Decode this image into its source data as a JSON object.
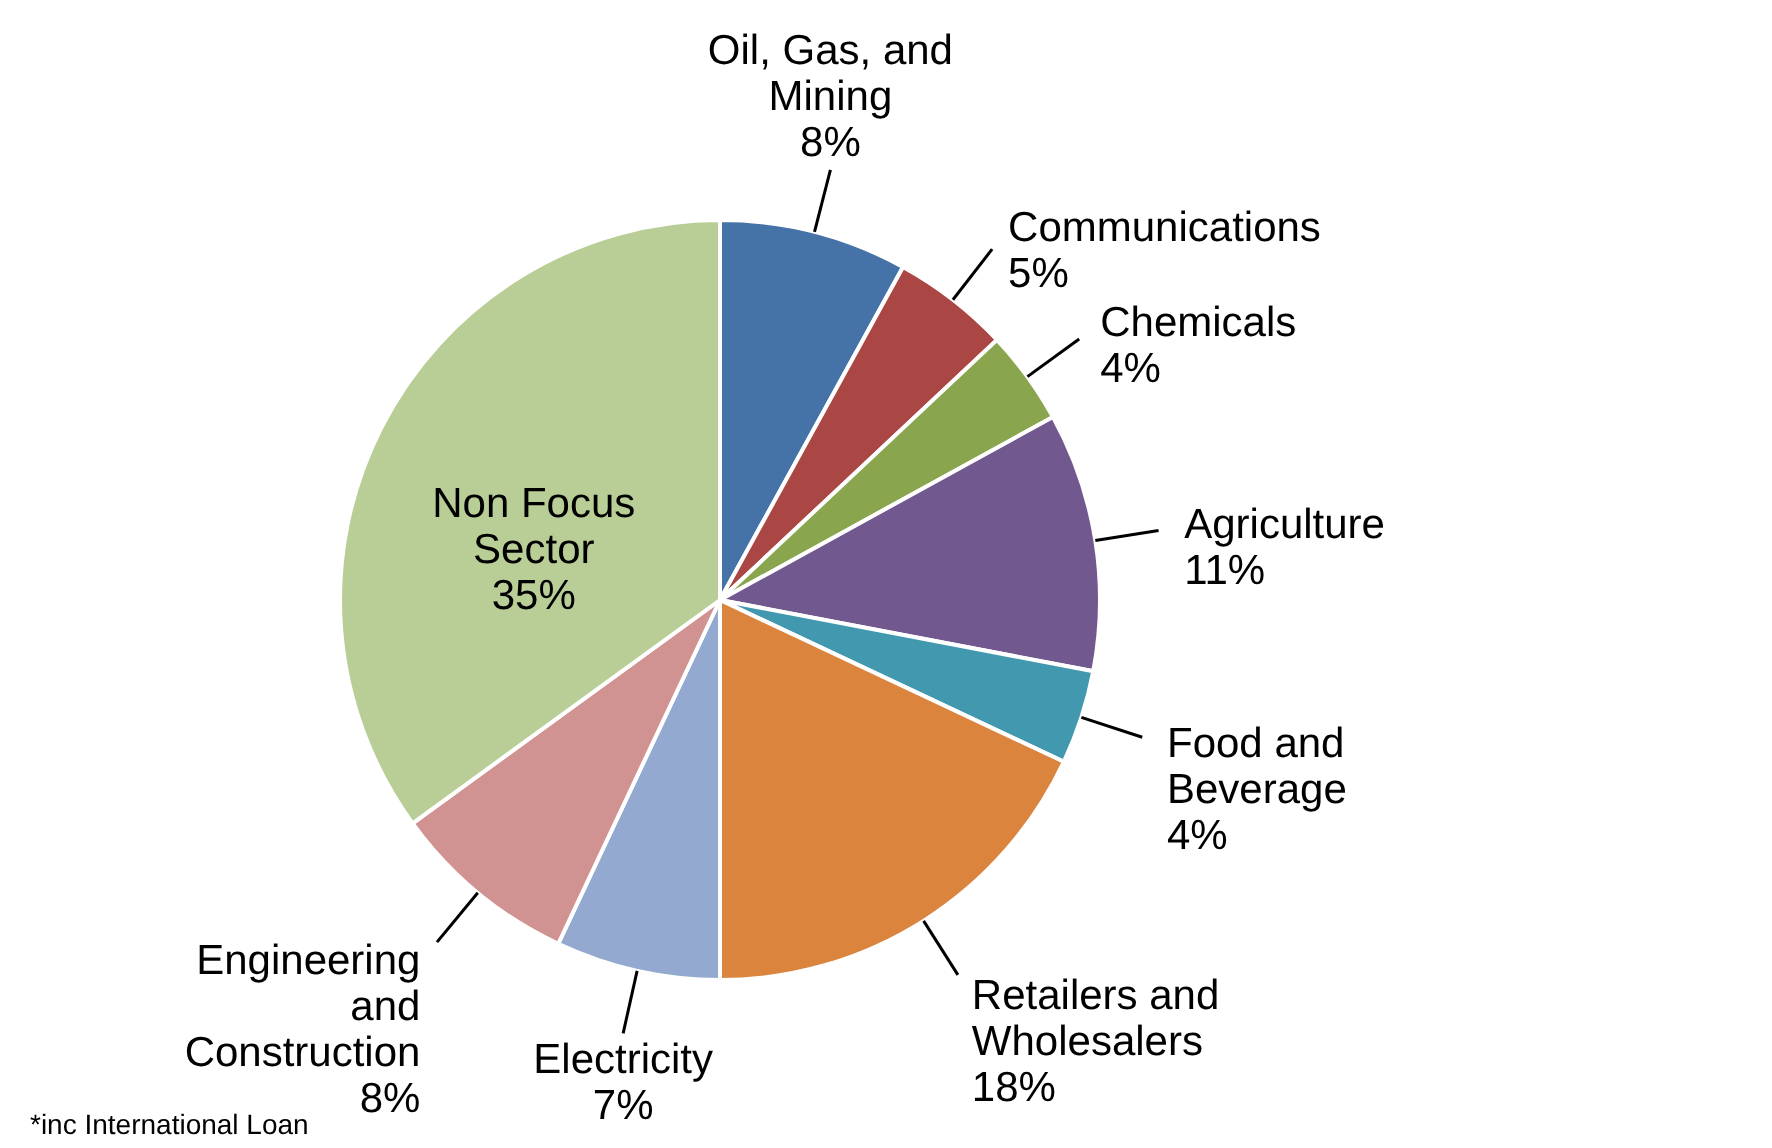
{
  "chart_data": {
    "type": "pie",
    "categories": [
      "Oil, Gas, and Mining",
      "Communications",
      "Chemicals",
      "Agriculture",
      "Food and Beverage",
      "Retailers and Wholesalers",
      "Electricity",
      "Engineering and Construction",
      "Non Focus Sector"
    ],
    "values": [
      8,
      5,
      4,
      11,
      4,
      18,
      7,
      8,
      35
    ],
    "colors": [
      "#4572a7",
      "#aa4643",
      "#89a54e",
      "#71588f",
      "#4198af",
      "#db843d",
      "#93a9cf",
      "#d19392",
      "#b9cd96"
    ],
    "value_labels": [
      "8%",
      "5%",
      "4%",
      "11%",
      "4%",
      "18%",
      "7%",
      "8%",
      "35%"
    ],
    "annotations": [
      "*inc International Loan"
    ]
  }
}
